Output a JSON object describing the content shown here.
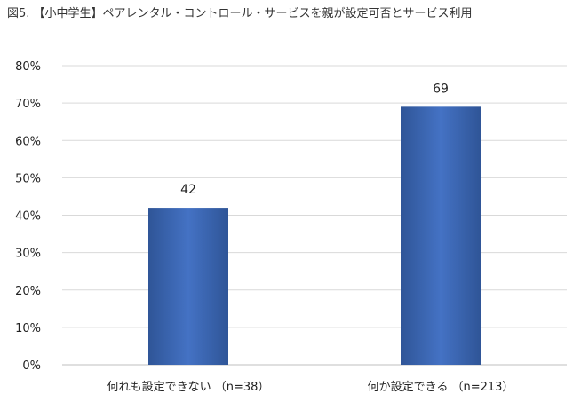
{
  "chart_data": {
    "type": "bar",
    "title": "図5. 【小中学生】ペアレンタル・コントロール・サービスを親が設定可否とサービス利用",
    "categories": [
      "何れも設定できない （n=38）",
      "何か設定できる （n=213）"
    ],
    "values": [
      42,
      69
    ],
    "data_labels": [
      "42",
      "69"
    ],
    "xlabel": "",
    "ylabel": "",
    "ylim": [
      0,
      80
    ],
    "yticks": [
      "0%",
      "10%",
      "20%",
      "30%",
      "40%",
      "50%",
      "60%",
      "70%",
      "80%"
    ],
    "grid": true,
    "legend": "none",
    "colors": {
      "bar": "#4472C4",
      "bar_dark": "#2F5597",
      "grid": "#D9D9D9",
      "axis": "#BFBFBF",
      "text": "#222222"
    }
  }
}
